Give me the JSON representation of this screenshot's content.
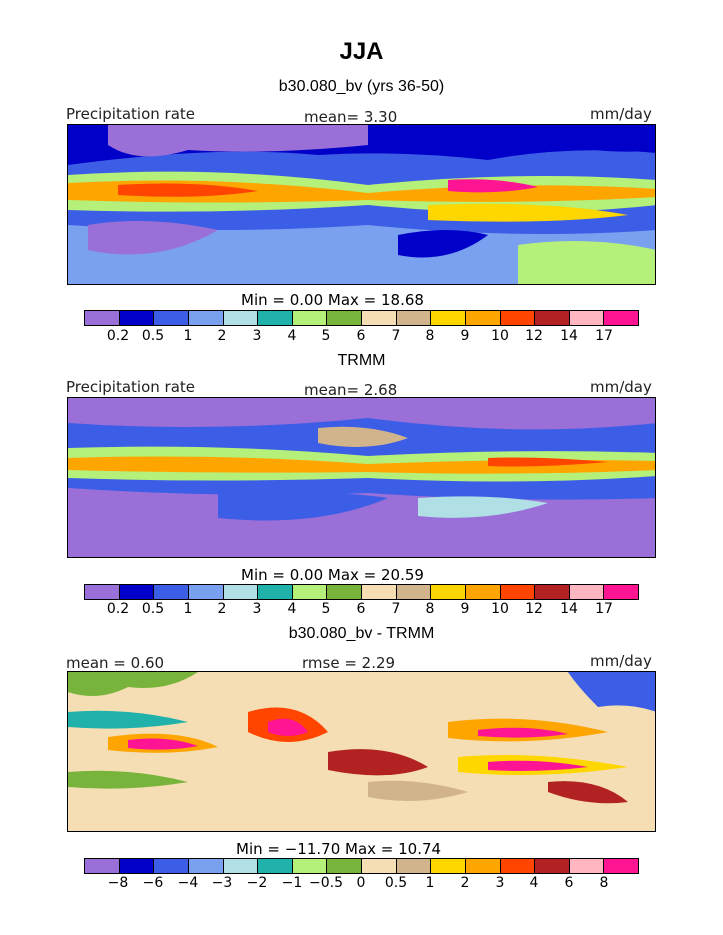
{
  "title": "JJA",
  "panels": [
    {
      "title": "b30.080_bv (yrs 36-50)",
      "left_label": "Precipitation rate",
      "center_label": "mean=    3.30",
      "right_label": "mm/day",
      "min_max": "Min =     0.00  Max =    18.68",
      "colorbar_ticks": [
        "0.2",
        "0.5",
        "1",
        "2",
        "3",
        "4",
        "5",
        "6",
        "7",
        "8",
        "9",
        "10",
        "12",
        "14",
        "17"
      ],
      "colors": [
        "#9a6fd8",
        "#0000c8",
        "#3c5ee6",
        "#7aa0f0",
        "#b0e0e6",
        "#20b2aa",
        "#b4f07a",
        "#78b43c",
        "#f5deb3",
        "#d2b48c",
        "#ffd700",
        "#ffa500",
        "#ff4500",
        "#b22222",
        "#ffb6c1",
        "#ff1493"
      ]
    },
    {
      "title": "TRMM",
      "left_label": "Precipitation rate",
      "center_label": "mean=    2.68",
      "right_label": "mm/day",
      "min_max": "Min =     0.00  Max =    20.59",
      "colorbar_ticks": [
        "0.2",
        "0.5",
        "1",
        "2",
        "3",
        "4",
        "5",
        "6",
        "7",
        "8",
        "9",
        "10",
        "12",
        "14",
        "17"
      ],
      "colors": [
        "#9a6fd8",
        "#0000c8",
        "#3c5ee6",
        "#7aa0f0",
        "#b0e0e6",
        "#20b2aa",
        "#b4f07a",
        "#78b43c",
        "#f5deb3",
        "#d2b48c",
        "#ffd700",
        "#ffa500",
        "#ff4500",
        "#b22222",
        "#ffb6c1",
        "#ff1493"
      ]
    },
    {
      "title": "b30.080_bv - TRMM",
      "left_label": "mean =    0.60",
      "center_label": "rmse =    2.29",
      "right_label": "mm/day",
      "min_max": "Min = −11.70  Max =    10.74",
      "colorbar_ticks": [
        "−8",
        "−6",
        "−4",
        "−3",
        "−2",
        "−1",
        "−0.5",
        "0",
        "0.5",
        "1",
        "2",
        "3",
        "4",
        "6",
        "8"
      ],
      "colors": [
        "#9a6fd8",
        "#0000c8",
        "#3c5ee6",
        "#7aa0f0",
        "#b0e0e6",
        "#20b2aa",
        "#b4f07a",
        "#78b43c",
        "#f5deb3",
        "#d2b48c",
        "#ffd700",
        "#ffa500",
        "#ff4500",
        "#b22222",
        "#ffb6c1",
        "#ff1493"
      ]
    }
  ],
  "chart_data": [
    {
      "type": "heatmap",
      "title": "b30.080_bv (yrs 36-50)",
      "variable": "Precipitation rate",
      "units": "mm/day",
      "mean": 3.3,
      "min": 0.0,
      "max": 18.68,
      "levels": [
        0.2,
        0.5,
        1,
        2,
        3,
        4,
        5,
        6,
        7,
        8,
        9,
        10,
        12,
        14,
        17
      ]
    },
    {
      "type": "heatmap",
      "title": "TRMM",
      "variable": "Precipitation rate",
      "units": "mm/day",
      "mean": 2.68,
      "min": 0.0,
      "max": 20.59,
      "levels": [
        0.2,
        0.5,
        1,
        2,
        3,
        4,
        5,
        6,
        7,
        8,
        9,
        10,
        12,
        14,
        17
      ]
    },
    {
      "type": "heatmap",
      "title": "b30.080_bv - TRMM",
      "units": "mm/day",
      "mean": 0.6,
      "rmse": 2.29,
      "min": -11.7,
      "max": 10.74,
      "levels": [
        -8,
        -6,
        -4,
        -3,
        -2,
        -1,
        -0.5,
        0,
        0.5,
        1,
        2,
        3,
        4,
        6,
        8
      ]
    }
  ]
}
